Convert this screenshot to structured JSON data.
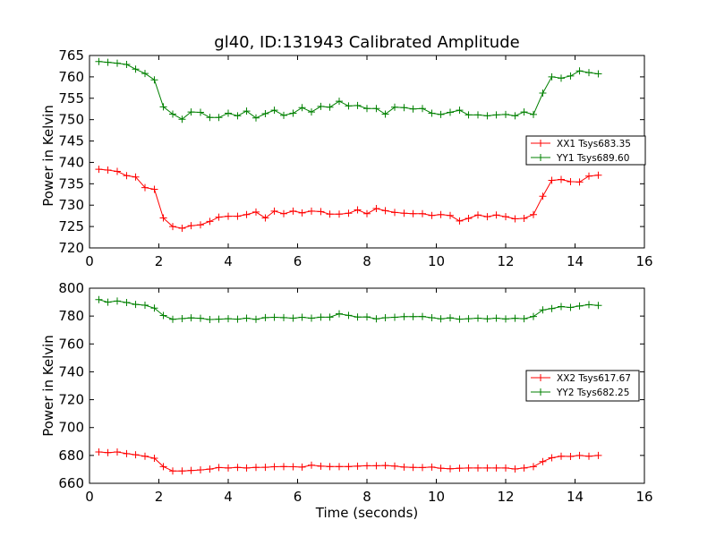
{
  "chart_data": [
    {
      "type": "line",
      "title": "gl40, ID:131943 Calibrated Amplitude",
      "xlabel": "",
      "ylabel": "Power in Kelvin",
      "xlim": [
        0,
        16
      ],
      "ylim": [
        720,
        765
      ],
      "xticks": [
        0,
        2,
        4,
        6,
        8,
        10,
        12,
        14,
        16
      ],
      "yticks": [
        720,
        725,
        730,
        735,
        740,
        745,
        750,
        755,
        760,
        765
      ],
      "legend_position": "center-right",
      "grid": false,
      "x": [
        0.27,
        0.53,
        0.8,
        1.07,
        1.33,
        1.6,
        1.87,
        2.13,
        2.4,
        2.67,
        2.93,
        3.2,
        3.47,
        3.73,
        4.0,
        4.27,
        4.53,
        4.8,
        5.07,
        5.33,
        5.6,
        5.87,
        6.13,
        6.4,
        6.67,
        6.93,
        7.2,
        7.47,
        7.73,
        8.0,
        8.27,
        8.53,
        8.8,
        9.07,
        9.33,
        9.6,
        9.87,
        10.13,
        10.4,
        10.67,
        10.93,
        11.2,
        11.47,
        11.73,
        12.0,
        12.27,
        12.53,
        12.8,
        13.07,
        13.33,
        13.6,
        13.87,
        14.13,
        14.4,
        14.67
      ],
      "series": [
        {
          "name": "XX1 Tsys683.35",
          "color": "#ff0000",
          "values": [
            738.4,
            738.2,
            737.9,
            736.9,
            736.6,
            734.1,
            733.7,
            727.0,
            725.0,
            724.6,
            725.2,
            725.4,
            726.2,
            727.2,
            727.4,
            727.4,
            727.8,
            728.4,
            727.0,
            728.6,
            728.0,
            728.6,
            728.2,
            728.6,
            728.5,
            727.9,
            727.9,
            728.1,
            728.9,
            728.0,
            729.2,
            728.7,
            728.3,
            728.1,
            728.0,
            728.0,
            727.6,
            727.8,
            727.6,
            726.3,
            726.9,
            727.7,
            727.3,
            727.7,
            727.3,
            726.8,
            726.9,
            727.8,
            732.1,
            735.8,
            736.0,
            735.5,
            735.4,
            736.8,
            737.0
          ]
        },
        {
          "name": "YY1 Tsys689.60",
          "color": "#008000",
          "values": [
            763.6,
            763.4,
            763.2,
            762.9,
            761.8,
            760.8,
            759.3,
            753.0,
            751.3,
            750.1,
            751.8,
            751.7,
            750.5,
            750.5,
            751.5,
            750.9,
            752.0,
            750.4,
            751.4,
            752.2,
            751.0,
            751.5,
            752.8,
            751.8,
            753.1,
            752.9,
            754.3,
            753.2,
            753.3,
            752.6,
            752.6,
            751.3,
            752.9,
            752.8,
            752.5,
            752.6,
            751.5,
            751.2,
            751.7,
            752.2,
            751.1,
            751.1,
            750.9,
            751.1,
            751.2,
            750.9,
            751.8,
            751.2,
            756.2,
            760.0,
            759.7,
            760.2,
            761.4,
            761.0,
            760.7
          ]
        }
      ]
    },
    {
      "type": "line",
      "title": "",
      "xlabel": "Time (seconds)",
      "ylabel": "Power in Kelvin",
      "xlim": [
        0,
        16
      ],
      "ylim": [
        660,
        800
      ],
      "xticks": [
        0,
        2,
        4,
        6,
        8,
        10,
        12,
        14,
        16
      ],
      "yticks": [
        660,
        680,
        700,
        720,
        740,
        760,
        780,
        800
      ],
      "legend_position": "center-right",
      "grid": false,
      "x": [
        0.27,
        0.53,
        0.8,
        1.07,
        1.33,
        1.6,
        1.87,
        2.13,
        2.4,
        2.67,
        2.93,
        3.2,
        3.47,
        3.73,
        4.0,
        4.27,
        4.53,
        4.8,
        5.07,
        5.33,
        5.6,
        5.87,
        6.13,
        6.4,
        6.67,
        6.93,
        7.2,
        7.47,
        7.73,
        8.0,
        8.27,
        8.53,
        8.8,
        9.07,
        9.33,
        9.6,
        9.87,
        10.13,
        10.4,
        10.67,
        10.93,
        11.2,
        11.47,
        11.73,
        12.0,
        12.27,
        12.53,
        12.8,
        13.07,
        13.33,
        13.6,
        13.87,
        14.13,
        14.4,
        14.67
      ],
      "series": [
        {
          "name": "XX2 Tsys617.67",
          "color": "#ff0000",
          "values": [
            682.5,
            682.0,
            682.5,
            681.3,
            680.5,
            679.4,
            678.0,
            672.0,
            668.8,
            668.8,
            669.2,
            669.6,
            670.2,
            671.3,
            671.0,
            671.4,
            671.0,
            671.4,
            671.5,
            671.9,
            672.0,
            671.9,
            671.6,
            673.0,
            672.3,
            672.0,
            672.0,
            672.0,
            672.3,
            672.6,
            672.6,
            672.8,
            672.4,
            671.6,
            671.4,
            671.3,
            671.6,
            670.8,
            670.4,
            670.8,
            671.0,
            671.0,
            671.0,
            671.0,
            671.0,
            670.3,
            671.0,
            672.0,
            675.6,
            678.3,
            679.4,
            679.3,
            680.0,
            679.4,
            680.0
          ]
        },
        {
          "name": "YY2 Tsys682.25",
          "color": "#008000",
          "values": [
            791.8,
            790.0,
            790.8,
            789.7,
            788.4,
            787.8,
            785.7,
            780.4,
            777.7,
            778.2,
            778.7,
            778.4,
            777.5,
            777.8,
            778.1,
            777.8,
            778.5,
            777.7,
            778.9,
            779.1,
            778.9,
            778.5,
            779.1,
            778.5,
            779.2,
            779.2,
            781.6,
            780.5,
            779.3,
            779.4,
            778.0,
            778.8,
            779.1,
            779.6,
            779.6,
            779.7,
            778.8,
            778.0,
            778.7,
            777.8,
            778.1,
            778.5,
            778.0,
            778.5,
            777.9,
            778.4,
            778.1,
            779.7,
            784.4,
            785.4,
            786.8,
            786.2,
            787.2,
            788.2,
            787.6
          ]
        }
      ]
    }
  ]
}
